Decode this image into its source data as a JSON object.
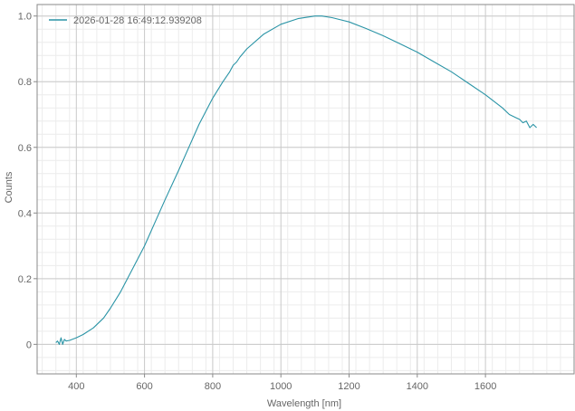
{
  "chart_data": {
    "type": "line",
    "xlabel": "Wavelength [nm]",
    "ylabel": "Counts",
    "xlim": [
      285,
      1860
    ],
    "ylim": [
      -0.09,
      1.035
    ],
    "xticks": [
      400,
      600,
      800,
      1000,
      1200,
      1400,
      1600
    ],
    "yticks": [
      0,
      0.2,
      0.4,
      0.6,
      0.8,
      1.0
    ],
    "ytick_labels": [
      "0",
      "0.2",
      "0.4",
      "0.6",
      "0.8",
      "1.0"
    ],
    "grid": true,
    "minor_grid": true,
    "legend_position": "top-left",
    "series": [
      {
        "name": "2026-01-28 16:49:12.939208",
        "color": "#2a94a6",
        "x": [
          340,
          345,
          350,
          355,
          360,
          365,
          370,
          380,
          400,
          420,
          450,
          480,
          500,
          530,
          560,
          600,
          630,
          660,
          700,
          730,
          760,
          800,
          830,
          850,
          860,
          870,
          880,
          900,
          950,
          1000,
          1050,
          1100,
          1120,
          1150,
          1200,
          1250,
          1300,
          1350,
          1400,
          1450,
          1500,
          1550,
          1600,
          1650,
          1670,
          1690,
          1700,
          1710,
          1720,
          1730,
          1740,
          1750
        ],
        "y": [
          0.005,
          0.01,
          0.0,
          0.02,
          0.0,
          0.015,
          0.01,
          0.012,
          0.02,
          0.03,
          0.05,
          0.08,
          0.11,
          0.16,
          0.22,
          0.3,
          0.37,
          0.44,
          0.53,
          0.6,
          0.67,
          0.75,
          0.8,
          0.83,
          0.85,
          0.86,
          0.875,
          0.9,
          0.945,
          0.975,
          0.992,
          1.0,
          1.0,
          0.995,
          0.982,
          0.962,
          0.94,
          0.915,
          0.89,
          0.86,
          0.83,
          0.795,
          0.76,
          0.72,
          0.7,
          0.69,
          0.685,
          0.675,
          0.68,
          0.66,
          0.67,
          0.66
        ]
      }
    ]
  }
}
